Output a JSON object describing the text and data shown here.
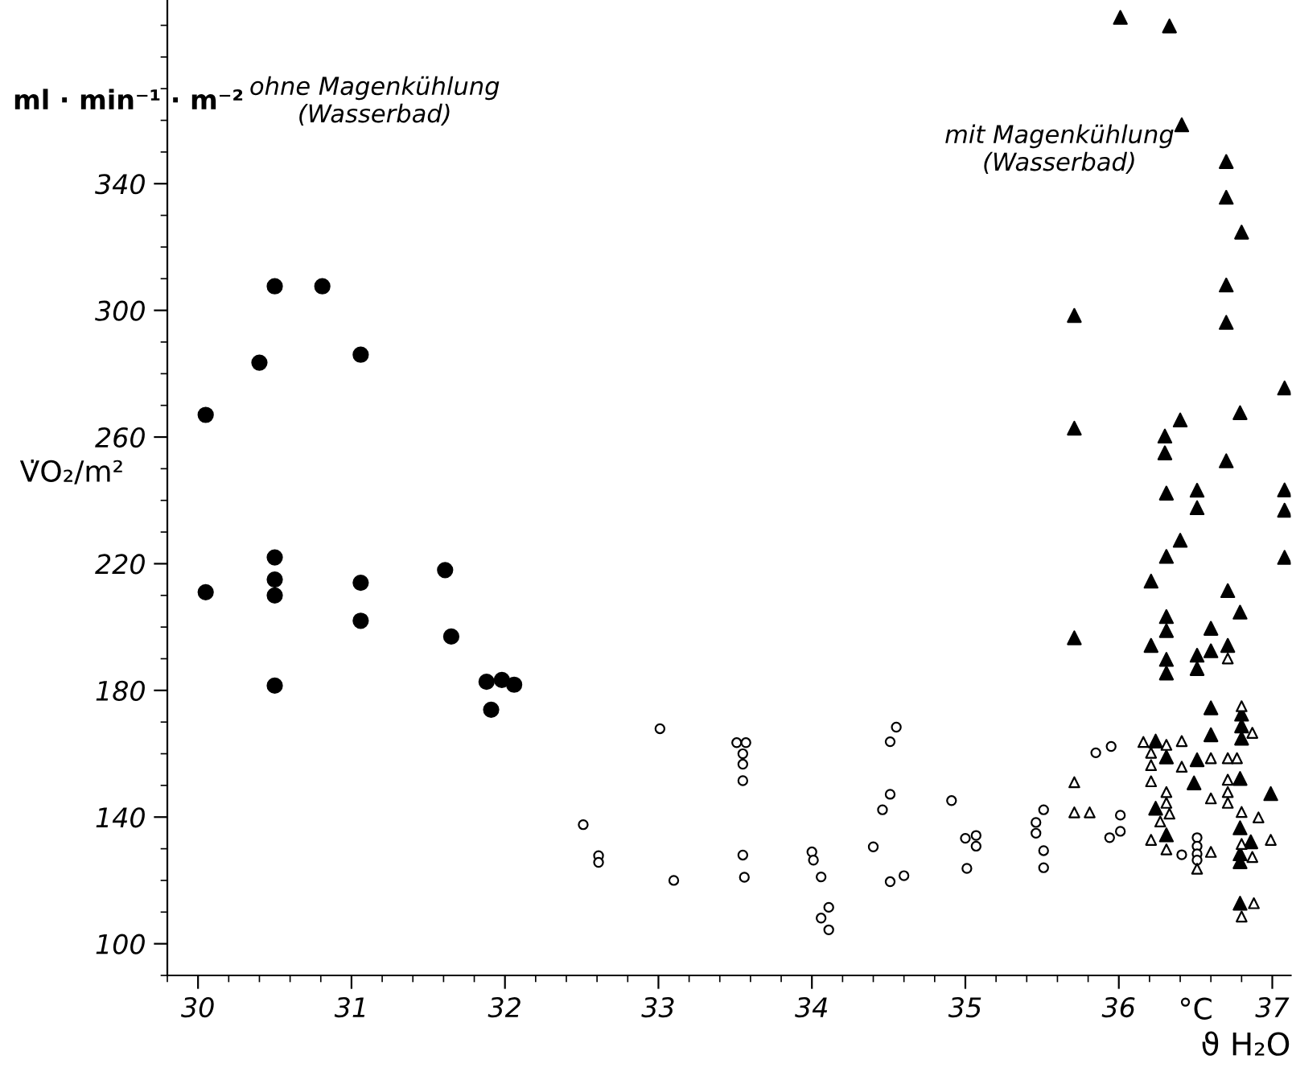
{
  "chart_data": {
    "type": "scatter",
    "xlabel": "ϑ H₂O",
    "ylabel": "V̇O₂/m²",
    "annotations": [
      "ml · min⁻¹ · m⁻²",
      "°C",
      "ohne Magenkühlung\n(Wasserbad)",
      "mit Magenkühlung\n(Wasserbad)"
    ],
    "xlim": [
      29.8,
      37.12
    ],
    "ylim": [
      90,
      398
    ],
    "xticks": [
      30,
      31,
      32,
      33,
      34,
      35,
      36,
      37
    ],
    "yticks": [
      100,
      140,
      180,
      220,
      260,
      300,
      340
    ],
    "grid": false,
    "legend": false,
    "series": [
      {
        "color": "#000000",
        "marker": "circle",
        "x": [
          30.05,
          30.05,
          30.5,
          30.81,
          30.4,
          31.06,
          30.5,
          30.5,
          30.5,
          30.5,
          31.06,
          31.06,
          31.61,
          31.65,
          31.88,
          31.98,
          32.06,
          31.91
        ],
        "values": [
          267,
          211,
          307.6,
          307.6,
          283.5,
          286,
          222,
          215,
          210,
          181.5,
          214,
          202,
          218,
          197,
          182.7,
          183.3,
          181.8,
          173.9
        ]
      },
      {
        "color": "#ffffff",
        "marker": "circle",
        "x": [
          32.51,
          32.61,
          32.61,
          33.01,
          33.1,
          33.51,
          33.57,
          33.55,
          33.55,
          33.55,
          33.55,
          33.56,
          34.0,
          34.01,
          34.06,
          34.11,
          34.06,
          34.11,
          34.4,
          34.46,
          34.51,
          34.51,
          34.55,
          34.51,
          34.6,
          34.91,
          35.0,
          35.07,
          35.07,
          35.01,
          35.46,
          35.46,
          35.51,
          35.51,
          35.51,
          35.85,
          35.95,
          36.01,
          36.01,
          35.94,
          36.41,
          36.51,
          36.51,
          36.51,
          36.51
        ],
        "values": [
          137.6,
          127.8,
          125.7,
          167.9,
          120,
          163.5,
          163.5,
          160,
          156.7,
          151.5,
          128,
          121,
          129,
          126.4,
          121.1,
          111.5,
          108.1,
          104.4,
          130.6,
          142.3,
          147.2,
          163.8,
          168.4,
          119.6,
          121.5,
          145.2,
          133.3,
          134.2,
          130.8,
          123.8,
          138.3,
          134.9,
          142.3,
          129.4,
          124,
          160.3,
          162.3,
          140.6,
          135.5,
          133.5,
          128.1,
          133.5,
          130.8,
          128.4,
          126.4
        ]
      },
      {
        "color": "#000000",
        "marker": "triangle",
        "x": [
          36.01,
          36.33,
          36.41,
          36.7,
          36.7,
          36.8,
          36.7,
          36.7,
          35.71,
          37.08,
          36.79,
          36.4,
          36.3,
          36.3,
          35.71,
          36.7,
          36.31,
          36.51,
          36.51,
          37.08,
          37.08,
          36.4,
          36.31,
          36.21,
          37.08,
          36.71,
          36.79,
          36.31,
          36.31,
          36.21,
          36.6,
          36.6,
          36.71,
          36.31,
          36.31,
          36.51,
          36.51,
          35.71,
          36.6,
          36.8,
          36.8,
          36.8,
          36.6,
          36.24,
          36.31,
          36.51,
          36.49,
          36.79,
          36.99,
          36.24,
          36.31,
          36.79,
          36.86,
          36.79,
          36.79,
          36.79
        ],
        "values": [
          392.5,
          389.8,
          358.6,
          347,
          335.7,
          324.7,
          308,
          296.2,
          298.4,
          275.5,
          267.7,
          265.4,
          260.3,
          255,
          262.8,
          252.5,
          242.3,
          243.2,
          237.7,
          243.3,
          236.9,
          227.4,
          222.3,
          214.5,
          222,
          211.5,
          204.7,
          203.3,
          198.9,
          194.2,
          199.6,
          192.5,
          194.2,
          189.8,
          185.5,
          191.1,
          186.9,
          196.6,
          174.5,
          172.5,
          168.8,
          164.9,
          166,
          164,
          159,
          158.1,
          150.8,
          152.2,
          147.4,
          142.8,
          134.4,
          136.6,
          132.2,
          128.4,
          125.9,
          112.8
        ]
      },
      {
        "color": "#ffffff",
        "marker": "triangle",
        "x": [
          35.71,
          35.71,
          35.81,
          36.16,
          36.21,
          36.21,
          36.31,
          36.41,
          36.41,
          36.6,
          36.71,
          36.77,
          36.21,
          36.31,
          36.31,
          36.33,
          36.27,
          36.6,
          36.71,
          36.71,
          36.71,
          36.8,
          36.91,
          36.87,
          36.8,
          36.21,
          36.31,
          36.6,
          36.51,
          36.8,
          36.87,
          36.99,
          36.88,
          36.8,
          36.71
        ],
        "values": [
          151,
          141.5,
          141.5,
          163.7,
          160.3,
          156.4,
          162.8,
          164,
          155.9,
          158.6,
          158.6,
          158.6,
          151.3,
          147.9,
          144.5,
          141.1,
          138.6,
          145.9,
          151.8,
          147.9,
          144.5,
          141.6,
          139.9,
          166.6,
          175,
          132.8,
          129.8,
          129,
          123.7,
          131.5,
          127.4,
          132.8,
          112.8,
          108.6,
          190.1
        ]
      }
    ]
  }
}
